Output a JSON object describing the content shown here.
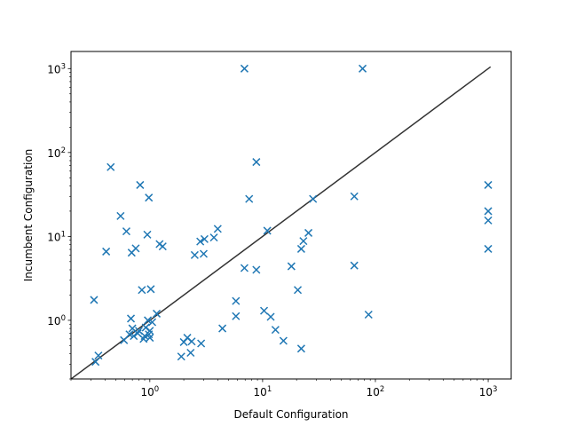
{
  "chart_data": {
    "type": "scatter",
    "title": "",
    "xlabel": "Default Configuration",
    "ylabel": "Incumbent Configuration",
    "xscale": "log",
    "yscale": "log",
    "xlim": [
      0.2,
      1600
    ],
    "ylim": [
      0.2,
      1600
    ],
    "grid": false,
    "x_ticks": [
      {
        "value": 1,
        "label": "10^0"
      },
      {
        "value": 10,
        "label": "10^1"
      },
      {
        "value": 100,
        "label": "10^2"
      },
      {
        "value": 1000,
        "label": "10^3"
      }
    ],
    "y_ticks": [
      {
        "value": 1,
        "label": "10^0"
      },
      {
        "value": 10,
        "label": "10^1"
      },
      {
        "value": 100,
        "label": "10^2"
      },
      {
        "value": 1000,
        "label": "10^3"
      }
    ],
    "reference_line": {
      "from": [
        0.2,
        0.2
      ],
      "to": [
        1050,
        1050
      ],
      "color": "#333333"
    },
    "marker": "x",
    "marker_color": "#1f77b4",
    "points": [
      {
        "x": 0.32,
        "y": 1.75
      },
      {
        "x": 0.33,
        "y": 0.32
      },
      {
        "x": 0.35,
        "y": 0.38
      },
      {
        "x": 0.41,
        "y": 6.6
      },
      {
        "x": 0.45,
        "y": 67
      },
      {
        "x": 0.55,
        "y": 17.5
      },
      {
        "x": 0.59,
        "y": 0.58
      },
      {
        "x": 0.62,
        "y": 11.5
      },
      {
        "x": 0.66,
        "y": 0.68
      },
      {
        "x": 0.68,
        "y": 1.05
      },
      {
        "x": 0.69,
        "y": 6.4
      },
      {
        "x": 0.7,
        "y": 0.8
      },
      {
        "x": 0.72,
        "y": 0.65
      },
      {
        "x": 0.75,
        "y": 7.2
      },
      {
        "x": 0.78,
        "y": 0.7
      },
      {
        "x": 0.8,
        "y": 0.75
      },
      {
        "x": 0.82,
        "y": 41
      },
      {
        "x": 0.85,
        "y": 2.3
      },
      {
        "x": 0.88,
        "y": 0.6
      },
      {
        "x": 0.9,
        "y": 0.65
      },
      {
        "x": 0.92,
        "y": 0.82
      },
      {
        "x": 0.95,
        "y": 10.5
      },
      {
        "x": 0.96,
        "y": 1.0
      },
      {
        "x": 0.98,
        "y": 0.68
      },
      {
        "x": 0.98,
        "y": 29
      },
      {
        "x": 1.0,
        "y": 0.62
      },
      {
        "x": 1.0,
        "y": 0.75
      },
      {
        "x": 1.02,
        "y": 2.35
      },
      {
        "x": 1.05,
        "y": 0.95
      },
      {
        "x": 1.15,
        "y": 1.2
      },
      {
        "x": 1.22,
        "y": 8.1
      },
      {
        "x": 1.3,
        "y": 7.6
      },
      {
        "x": 1.9,
        "y": 0.37
      },
      {
        "x": 2.0,
        "y": 0.55
      },
      {
        "x": 2.15,
        "y": 0.62
      },
      {
        "x": 2.3,
        "y": 0.41
      },
      {
        "x": 2.35,
        "y": 0.56
      },
      {
        "x": 2.5,
        "y": 6.0
      },
      {
        "x": 2.8,
        "y": 8.7
      },
      {
        "x": 2.85,
        "y": 0.53
      },
      {
        "x": 3.0,
        "y": 6.2
      },
      {
        "x": 3.05,
        "y": 9.3
      },
      {
        "x": 3.7,
        "y": 9.7
      },
      {
        "x": 4.0,
        "y": 12.3
      },
      {
        "x": 4.4,
        "y": 0.8
      },
      {
        "x": 5.8,
        "y": 1.7
      },
      {
        "x": 5.8,
        "y": 1.12
      },
      {
        "x": 6.9,
        "y": 4.2
      },
      {
        "x": 6.9,
        "y": 1000
      },
      {
        "x": 7.6,
        "y": 28
      },
      {
        "x": 8.8,
        "y": 77
      },
      {
        "x": 8.8,
        "y": 4.0
      },
      {
        "x": 10.3,
        "y": 1.3
      },
      {
        "x": 11.0,
        "y": 11.7
      },
      {
        "x": 11.8,
        "y": 1.1
      },
      {
        "x": 13.0,
        "y": 0.77
      },
      {
        "x": 15.3,
        "y": 0.57
      },
      {
        "x": 18.0,
        "y": 4.4
      },
      {
        "x": 20.5,
        "y": 2.3
      },
      {
        "x": 22.0,
        "y": 7.1
      },
      {
        "x": 22.0,
        "y": 0.46
      },
      {
        "x": 23.0,
        "y": 8.8
      },
      {
        "x": 25.5,
        "y": 11.0
      },
      {
        "x": 28.0,
        "y": 28
      },
      {
        "x": 65,
        "y": 30
      },
      {
        "x": 65,
        "y": 4.5
      },
      {
        "x": 77,
        "y": 1000
      },
      {
        "x": 87,
        "y": 1.17
      },
      {
        "x": 1000,
        "y": 41
      },
      {
        "x": 1000,
        "y": 20
      },
      {
        "x": 1000,
        "y": 15.5
      },
      {
        "x": 1000,
        "y": 7.1
      }
    ]
  }
}
